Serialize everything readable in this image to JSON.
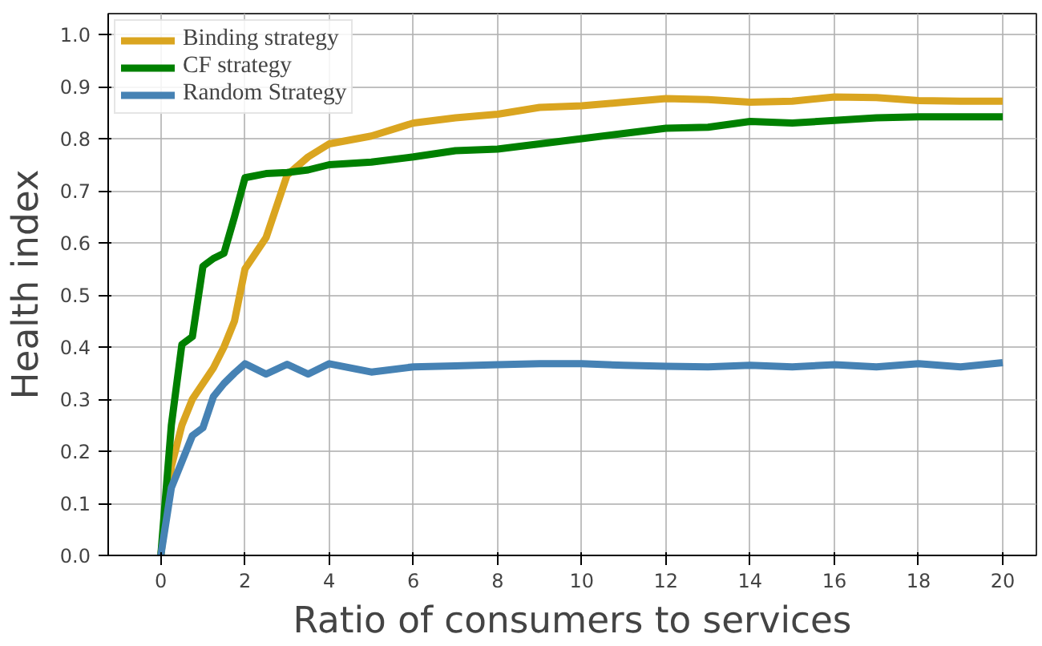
{
  "chart_data": {
    "type": "line",
    "xlabel": "Ratio of consumers to services",
    "ylabel": "Health index",
    "xlim": [
      -1.25,
      20.8
    ],
    "ylim": [
      0,
      1.04
    ],
    "xticks": [
      0,
      2,
      4,
      6,
      8,
      10,
      12,
      14,
      16,
      18,
      20
    ],
    "yticks": [
      {
        "value": 0,
        "label": "0.0"
      },
      {
        "value": 0.1,
        "label": "0.1"
      },
      {
        "value": 0.2,
        "label": "0.2"
      },
      {
        "value": 0.3,
        "label": "0.3"
      },
      {
        "value": 0.4,
        "label": "0.4"
      },
      {
        "value": 0.5,
        "label": "0.5"
      },
      {
        "value": 0.6,
        "label": "0.6"
      },
      {
        "value": 0.7,
        "label": "0.7"
      },
      {
        "value": 0.8,
        "label": "0.8"
      },
      {
        "value": 0.9,
        "label": "0.9"
      },
      {
        "value": 1.0,
        "label": "1.0"
      }
    ],
    "grid": true,
    "legend": "top left",
    "marker": "none",
    "line_style": "solid",
    "x": [
      0,
      0.25,
      0.5,
      0.75,
      1,
      1.25,
      1.5,
      1.75,
      2,
      2.5,
      3,
      3.5,
      4,
      5,
      6,
      7,
      8,
      9,
      10,
      11,
      12,
      13,
      14,
      15,
      16,
      17,
      18,
      19,
      20
    ],
    "series": [
      {
        "name": "Binding strategy",
        "color": "#daa520",
        "values": [
          0,
          0.17,
          0.25,
          0.3,
          0.33,
          0.36,
          0.4,
          0.45,
          0.55,
          0.61,
          0.73,
          0.765,
          0.79,
          0.805,
          0.83,
          0.84,
          0.847,
          0.86,
          0.863,
          0.87,
          0.877,
          0.875,
          0.87,
          0.872,
          0.88,
          0.879,
          0.873,
          0.872,
          0.872
        ]
      },
      {
        "name": "CF strategy",
        "color": "#008000",
        "values": [
          0,
          0.25,
          0.405,
          0.42,
          0.555,
          0.57,
          0.58,
          0.65,
          0.725,
          0.733,
          0.735,
          0.74,
          0.75,
          0.755,
          0.765,
          0.777,
          0.78,
          0.79,
          0.8,
          0.81,
          0.82,
          0.822,
          0.833,
          0.83,
          0.835,
          0.84,
          0.842,
          0.842,
          0.842
        ]
      },
      {
        "name": "Random Strategy",
        "color": "#4682b4",
        "values": [
          0,
          0.13,
          0.18,
          0.23,
          0.245,
          0.305,
          0.33,
          0.35,
          0.368,
          0.348,
          0.367,
          0.348,
          0.368,
          0.352,
          0.362,
          0.364,
          0.366,
          0.368,
          0.368,
          0.365,
          0.363,
          0.362,
          0.365,
          0.362,
          0.366,
          0.362,
          0.368,
          0.362,
          0.37
        ]
      }
    ]
  }
}
